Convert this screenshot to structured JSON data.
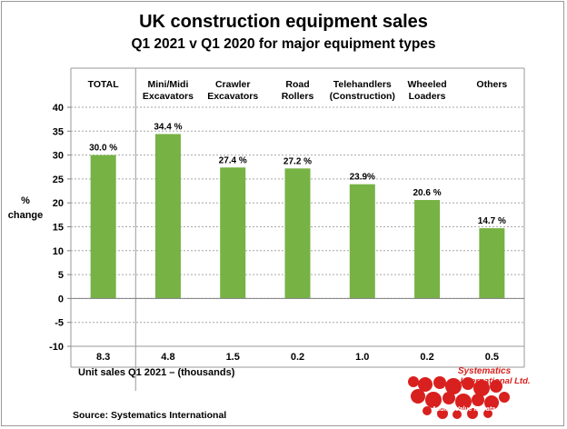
{
  "chart_data": {
    "type": "bar",
    "title": "UK construction equipment sales",
    "subtitle": "Q1 2021  v  Q1 2020 for major equipment types",
    "ylabel": [
      "%",
      "change"
    ],
    "ylim": [
      -10,
      40
    ],
    "yticks": [
      -10,
      -5,
      0,
      5,
      10,
      15,
      20,
      25,
      30,
      35,
      40
    ],
    "grid": true,
    "categories": [
      [
        "TOTAL"
      ],
      [
        "Mini/Midi",
        "Excavators"
      ],
      [
        "Crawler",
        "Excavators"
      ],
      [
        "Road",
        "Rollers"
      ],
      [
        "Telehandlers",
        "(Construction)"
      ],
      [
        "Wheeled",
        "Loaders"
      ],
      [
        "Others"
      ]
    ],
    "values": [
      30.0,
      34.4,
      27.4,
      27.2,
      23.9,
      20.6,
      14.7
    ],
    "value_labels": [
      "30.0 %",
      "34.4 %",
      "27.4 %",
      "27.2 %",
      "23.9%",
      "20.6 %",
      "14.7 %"
    ],
    "unit_sales": [
      "8.3",
      "4.8",
      "1.5",
      "0.2",
      "1.0",
      "0.2",
      "0.5"
    ],
    "unit_sales_label": "Unit sales Q1 2021 –  (thousands)",
    "bar_color": "#77b244"
  },
  "source": "Source: Systematics International",
  "logo": {
    "name": "Systematics",
    "line2": "International Ltd.",
    "tagline": "Adding Value to Data",
    "color": "#d8201e"
  }
}
